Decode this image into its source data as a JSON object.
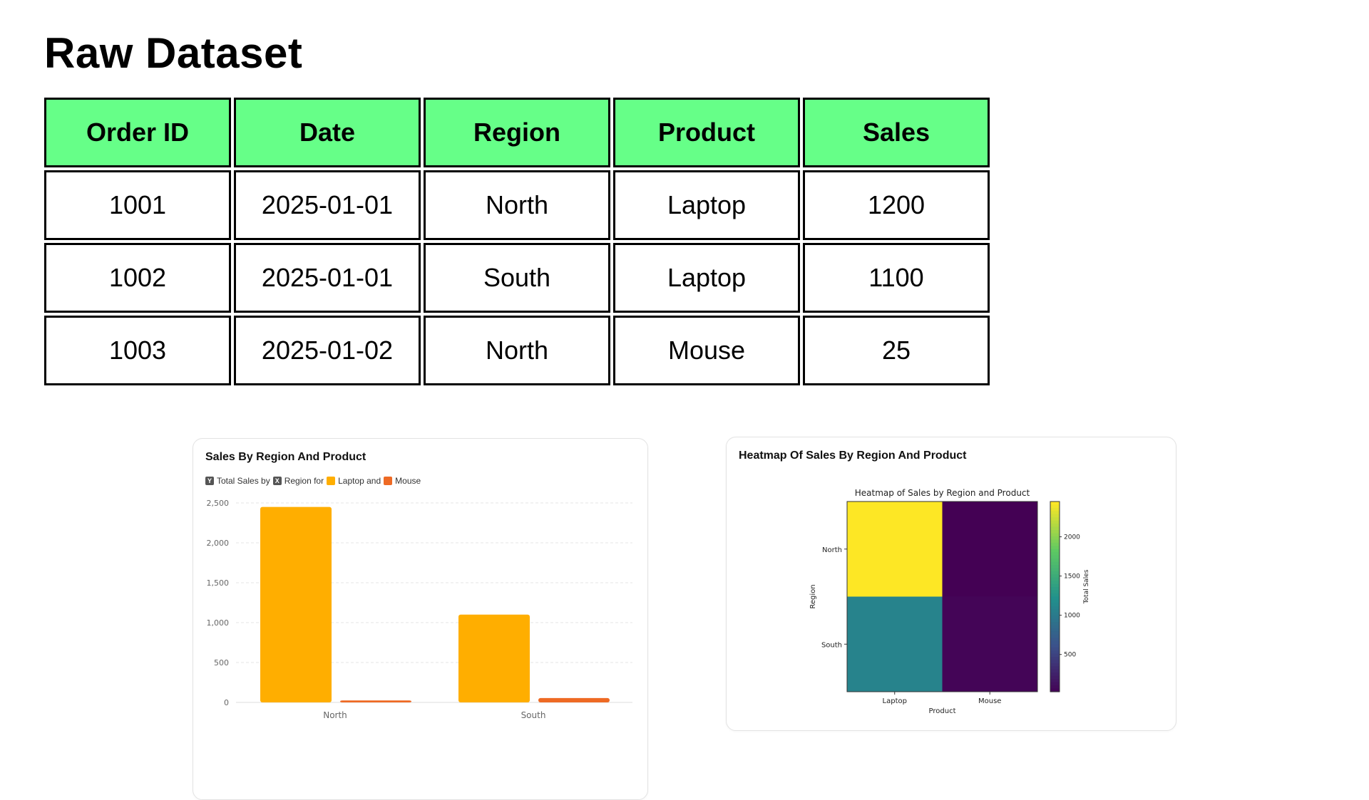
{
  "page_title": "Raw Dataset",
  "table": {
    "headers": [
      "Order ID",
      "Date",
      "Region",
      "Product",
      "Sales"
    ],
    "rows": [
      [
        "1001",
        "2025-01-01",
        "North",
        "Laptop",
        "1200"
      ],
      [
        "1002",
        "2025-01-01",
        "South",
        "Laptop",
        "1100"
      ],
      [
        "1003",
        "2025-01-02",
        "North",
        "Mouse",
        "25"
      ]
    ]
  },
  "colors": {
    "header_bg": "#66ff88",
    "laptop": "#ffae00",
    "mouse": "#ee6a24"
  },
  "chart_data": [
    {
      "type": "bar",
      "title": "Sales By Region And Product",
      "legend": {
        "y_badge": "Y",
        "y_text": "Total Sales by",
        "x_badge": "X",
        "x_text": "Region for",
        "s1": "Laptop and",
        "s2": "Mouse"
      },
      "categories": [
        "North",
        "South"
      ],
      "series": [
        {
          "name": "Laptop",
          "values": [
            2450,
            1100
          ]
        },
        {
          "name": "Mouse",
          "values": [
            25,
            55
          ]
        }
      ],
      "ylim": [
        0,
        2500
      ],
      "yticks": [
        "0",
        "500",
        "1,000",
        "1,500",
        "2,000",
        "2,500"
      ],
      "grid": true
    },
    {
      "type": "heatmap",
      "card_title": "Heatmap Of Sales By Region And Product",
      "title": "Heatmap of Sales by Region and Product",
      "xlabel": "Product",
      "ylabel": "Region",
      "x": [
        "Laptop",
        "Mouse"
      ],
      "y": [
        "North",
        "South"
      ],
      "values": [
        [
          2450,
          25
        ],
        [
          1100,
          55
        ]
      ],
      "colorbar_label": "Total Sales",
      "colorbar_ticks": [
        "500",
        "1000",
        "1500",
        "2000"
      ],
      "vrange": [
        25,
        2450
      ]
    }
  ]
}
